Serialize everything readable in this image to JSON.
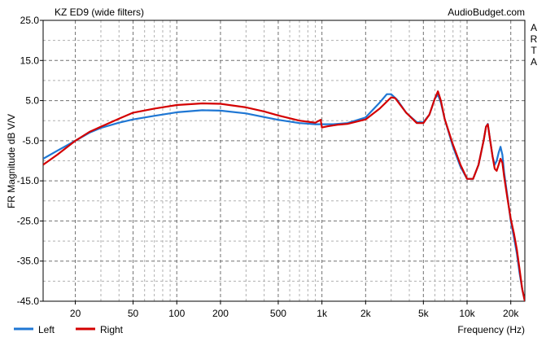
{
  "chart_data": {
    "type": "line",
    "title": "KZ ED9 (wide filters)",
    "watermark": "AudioBudget.com",
    "side_label": [
      "A",
      "R",
      "T",
      "A"
    ],
    "xlabel": "Frequency (Hz)",
    "ylabel": "FR Magnitude dB V/V",
    "xscale": "log",
    "xlim": [
      12,
      25000
    ],
    "ylim": [
      -45,
      25
    ],
    "xticks": [
      {
        "value": 20,
        "label": "20"
      },
      {
        "value": 50,
        "label": "50"
      },
      {
        "value": 100,
        "label": "100"
      },
      {
        "value": 200,
        "label": "200"
      },
      {
        "value": 500,
        "label": "500"
      },
      {
        "value": 1000,
        "label": "1k"
      },
      {
        "value": 2000,
        "label": "2k"
      },
      {
        "value": 5000,
        "label": "5k"
      },
      {
        "value": 10000,
        "label": "10k"
      },
      {
        "value": 20000,
        "label": "20k"
      }
    ],
    "yticks": [
      {
        "value": 25,
        "label": "25.0"
      },
      {
        "value": 15,
        "label": "15.0"
      },
      {
        "value": 5,
        "label": "5.0"
      },
      {
        "value": -5,
        "label": "-5.0"
      },
      {
        "value": -15,
        "label": "-15.0"
      },
      {
        "value": -25,
        "label": "-25.0"
      },
      {
        "value": -35,
        "label": "-35.0"
      },
      {
        "value": -45,
        "label": "-45.0"
      }
    ],
    "grid": true,
    "legend_position": "bottom-left",
    "series": [
      {
        "name": "Left",
        "color": "#1f77d4",
        "points": [
          [
            12,
            -9.5
          ],
          [
            15,
            -7.5
          ],
          [
            20,
            -5
          ],
          [
            25,
            -3
          ],
          [
            30,
            -1.8
          ],
          [
            40,
            -0.5
          ],
          [
            50,
            0.3
          ],
          [
            70,
            1.2
          ],
          [
            100,
            2.1
          ],
          [
            150,
            2.6
          ],
          [
            200,
            2.5
          ],
          [
            300,
            1.8
          ],
          [
            400,
            0.9
          ],
          [
            500,
            0.2
          ],
          [
            700,
            -0.6
          ],
          [
            900,
            -0.9
          ],
          [
            1000,
            -0.9
          ],
          [
            1200,
            -0.9
          ],
          [
            1500,
            -0.6
          ],
          [
            2000,
            0.8
          ],
          [
            2500,
            4.5
          ],
          [
            2800,
            6.6
          ],
          [
            3000,
            6.6
          ],
          [
            3300,
            5.2
          ],
          [
            3800,
            2
          ],
          [
            4500,
            -0.4
          ],
          [
            5000,
            -0.4
          ],
          [
            5500,
            1.5
          ],
          [
            6000,
            5.5
          ],
          [
            6300,
            6.5
          ],
          [
            6600,
            4.5
          ],
          [
            7000,
            0.5
          ],
          [
            8000,
            -6.5
          ],
          [
            9000,
            -11.5
          ],
          [
            10000,
            -14.5
          ],
          [
            11000,
            -14.5
          ],
          [
            12000,
            -11
          ],
          [
            13000,
            -5
          ],
          [
            13500,
            -1.5
          ],
          [
            13900,
            -0.8
          ],
          [
            14300,
            -4
          ],
          [
            15000,
            -9
          ],
          [
            15500,
            -11
          ],
          [
            16000,
            -10
          ],
          [
            16500,
            -8
          ],
          [
            17000,
            -6.5
          ],
          [
            17500,
            -8.5
          ],
          [
            18000,
            -13
          ],
          [
            19000,
            -19
          ],
          [
            20000,
            -25
          ],
          [
            21000,
            -29
          ],
          [
            22000,
            -33
          ],
          [
            23000,
            -38
          ],
          [
            24000,
            -42
          ],
          [
            25000,
            -45
          ]
        ]
      },
      {
        "name": "Right",
        "color": "#d40000",
        "points": [
          [
            12,
            -11
          ],
          [
            15,
            -8.5
          ],
          [
            20,
            -5
          ],
          [
            25,
            -2.8
          ],
          [
            30,
            -1.5
          ],
          [
            40,
            0.5
          ],
          [
            50,
            2
          ],
          [
            70,
            3
          ],
          [
            100,
            3.9
          ],
          [
            150,
            4.3
          ],
          [
            200,
            4.2
          ],
          [
            300,
            3.3
          ],
          [
            400,
            2.3
          ],
          [
            500,
            1.3
          ],
          [
            700,
            0
          ],
          [
            900,
            -0.5
          ],
          [
            980,
            0.2
          ],
          [
            1000,
            -1.7
          ],
          [
            1100,
            -1.4
          ],
          [
            1300,
            -1
          ],
          [
            1500,
            -0.8
          ],
          [
            2000,
            0.3
          ],
          [
            2500,
            3
          ],
          [
            3000,
            5.8
          ],
          [
            3200,
            5.6
          ],
          [
            3800,
            2
          ],
          [
            4500,
            -0.6
          ],
          [
            5000,
            -0.6
          ],
          [
            5500,
            1.5
          ],
          [
            6000,
            5.5
          ],
          [
            6300,
            7.3
          ],
          [
            6600,
            5
          ],
          [
            7000,
            0.5
          ],
          [
            8000,
            -6
          ],
          [
            9000,
            -11
          ],
          [
            10000,
            -14.5
          ],
          [
            11000,
            -14.5
          ],
          [
            12000,
            -11
          ],
          [
            13000,
            -5
          ],
          [
            13500,
            -1.5
          ],
          [
            13900,
            -0.9
          ],
          [
            14300,
            -4
          ],
          [
            15000,
            -9
          ],
          [
            15500,
            -12
          ],
          [
            16000,
            -12.5
          ],
          [
            16500,
            -11
          ],
          [
            17000,
            -9.5
          ],
          [
            17500,
            -10.5
          ],
          [
            18000,
            -14
          ],
          [
            19000,
            -19.5
          ],
          [
            20000,
            -24.5
          ],
          [
            21000,
            -28
          ],
          [
            22000,
            -32
          ],
          [
            23000,
            -37
          ],
          [
            24000,
            -42
          ],
          [
            25000,
            -45
          ]
        ]
      }
    ]
  }
}
